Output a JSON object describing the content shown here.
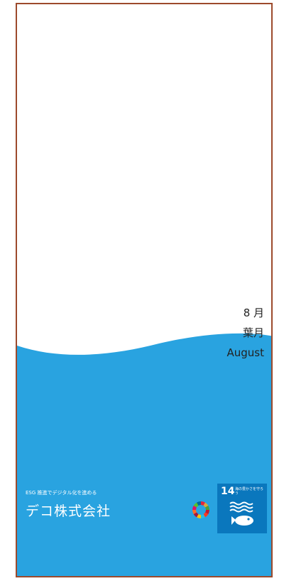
{
  "month": {
    "number_label": "8 月",
    "japanese_name": "葉月",
    "english_name": "August"
  },
  "footer": {
    "tagline": "ESG 推進でデジタル化を進める",
    "company_name": "デコ株式会社"
  },
  "sdg": {
    "goal_number": "14",
    "goal_text": "海の豊かさを守ろう",
    "wheel_icon": "sdgs-wheel-icon",
    "goal_icon": "fish-waves-icon"
  },
  "colors": {
    "sea": "#29a3e0",
    "border": "#9c4a2c",
    "sdg14": "#0a77bd"
  }
}
